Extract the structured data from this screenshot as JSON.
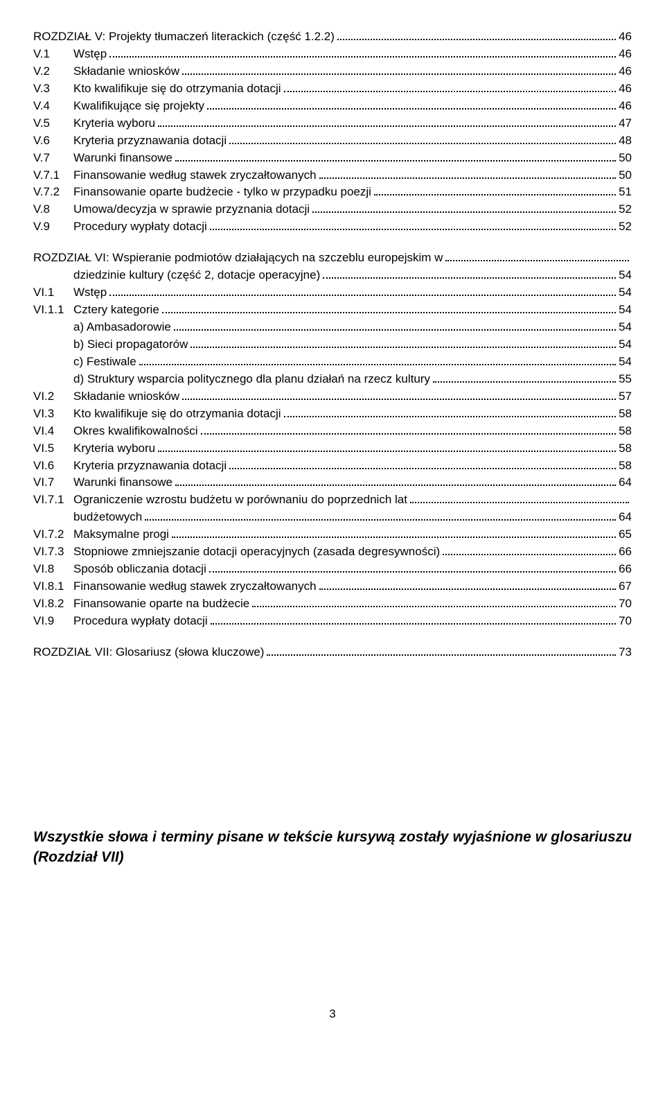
{
  "sections": [
    {
      "type": "line",
      "indent": 1,
      "num": "",
      "text": "ROZDZIAŁ V: Projekty tłumaczeń literackich (część 1.2.2)",
      "page": "46"
    },
    {
      "type": "line",
      "indent": 1,
      "num": "V.1",
      "text": "Wstęp",
      "page": "46"
    },
    {
      "type": "line",
      "indent": 1,
      "num": "V.2",
      "text": "Składanie wniosków",
      "page": "46"
    },
    {
      "type": "line",
      "indent": 1,
      "num": "V.3",
      "text": "Kto kwalifikuje się do otrzymania dotacji",
      "page": "46"
    },
    {
      "type": "line",
      "indent": 1,
      "num": "V.4",
      "text": "Kwalifikujące się projekty",
      "page": "46"
    },
    {
      "type": "line",
      "indent": 1,
      "num": "V.5",
      "text": "Kryteria wyboru",
      "page": "47"
    },
    {
      "type": "line",
      "indent": 1,
      "num": "V.6",
      "text": "Kryteria przyznawania dotacji",
      "page": "48"
    },
    {
      "type": "line",
      "indent": 1,
      "num": "V.7",
      "text": "Warunki finansowe",
      "page": "50"
    },
    {
      "type": "line",
      "indent": 1,
      "num": "V.7.1",
      "text": "Finansowanie według stawek zryczałtowanych",
      "page": "50"
    },
    {
      "type": "line",
      "indent": 1,
      "num": "V.7.2",
      "text": "Finansowanie oparte budżecie - tylko w przypadku poezji",
      "page": "51"
    },
    {
      "type": "line",
      "indent": 1,
      "num": "V.8",
      "text": "Umowa/decyzja w sprawie przyznania dotacji",
      "page": "52"
    },
    {
      "type": "line",
      "indent": 1,
      "num": "V.9",
      "text": "Procedury wypłaty dotacji",
      "page": "52"
    },
    {
      "type": "gap"
    },
    {
      "type": "wrap2",
      "indent": 1,
      "num": "",
      "text1": "ROZDZIAŁ VI: Wspieranie podmiotów działających na szczeblu europejskim w",
      "text2": "dziedzinie kultury (część 2, dotacje operacyjne)",
      "page": "54"
    },
    {
      "type": "line",
      "indent": 1,
      "num": "VI.1",
      "text": "Wstęp",
      "page": "54"
    },
    {
      "type": "line",
      "indent": 1,
      "num": "VI.1.1",
      "text": "Cztery kategorie",
      "page": "54"
    },
    {
      "type": "line",
      "indent": 2,
      "num": "",
      "text": "a) Ambasadorowie",
      "page": "54"
    },
    {
      "type": "line",
      "indent": 2,
      "num": "",
      "text": "b) Sieci propagatorów",
      "page": "54"
    },
    {
      "type": "line",
      "indent": 2,
      "num": "",
      "text": "c) Festiwale",
      "page": "54"
    },
    {
      "type": "line",
      "indent": 2,
      "num": "",
      "text": "d) Struktury wsparcia politycznego dla planu działań na rzecz kultury",
      "page": "55"
    },
    {
      "type": "line",
      "indent": 1,
      "num": "VI.2",
      "text": "Składanie wniosków",
      "page": "57"
    },
    {
      "type": "line",
      "indent": 1,
      "num": "VI.3",
      "text": "Kto kwalifikuje się do otrzymania dotacji",
      "page": "58"
    },
    {
      "type": "line",
      "indent": 1,
      "num": "VI.4",
      "text": "Okres kwalifikowalności",
      "page": "58"
    },
    {
      "type": "line",
      "indent": 1,
      "num": "VI.5",
      "text": "Kryteria wyboru",
      "page": "58"
    },
    {
      "type": "line",
      "indent": 1,
      "num": "VI.6",
      "text": "Kryteria przyznawania dotacji",
      "page": "58"
    },
    {
      "type": "line",
      "indent": 1,
      "num": "VI.7",
      "text": "Warunki finansowe",
      "page": "64"
    },
    {
      "type": "wrap2",
      "indent": 1,
      "num": "VI.7.1",
      "text1": "Ograniczenie wzrostu budżetu w porównaniu do poprzednich lat",
      "text2": "budżetowych",
      "page": "64"
    },
    {
      "type": "line",
      "indent": 1,
      "num": "VI.7.2",
      "text": "Maksymalne progi",
      "page": "65"
    },
    {
      "type": "line",
      "indent": 1,
      "num": "VI.7.3",
      "text": "Stopniowe zmniejszanie dotacji operacyjnych (zasada degresywności)",
      "page": "66"
    },
    {
      "type": "line",
      "indent": 1,
      "num": "VI.8",
      "text": "Sposób obliczania dotacji",
      "page": "66"
    },
    {
      "type": "line",
      "indent": 1,
      "num": "VI.8.1",
      "text": "Finansowanie według stawek zryczałtowanych",
      "page": "67"
    },
    {
      "type": "line",
      "indent": 1,
      "num": "VI.8.2",
      "text": "Finansowanie oparte na budżecie",
      "page": "70"
    },
    {
      "type": "line",
      "indent": 1,
      "num": "VI.9",
      "text": "Procedura wypłaty dotacji",
      "page": "70"
    },
    {
      "type": "gap"
    },
    {
      "type": "line",
      "indent": 1,
      "num": "",
      "text": "ROZDZIAŁ VII: Glosariusz (słowa kluczowe)",
      "page": "73"
    }
  ],
  "footnote": "Wszystkie słowa i terminy pisane w tekście kursywą zostały wyjaśnione w glosariuszu (Rozdział VII)",
  "pagenum": "3"
}
